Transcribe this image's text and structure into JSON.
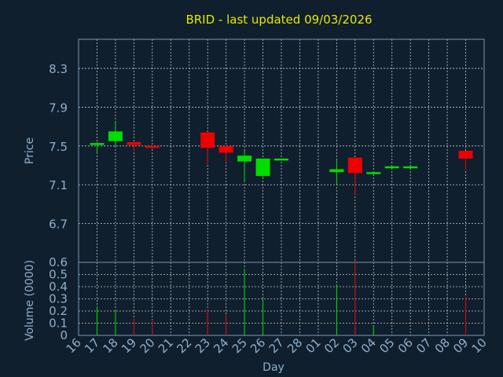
{
  "title": "BRID - last updated 09/03/2026",
  "colors": {
    "background": "#0f1f2e",
    "title": "#e8e800",
    "axis_text": "#8fb0cc",
    "frame": "#7f97b0",
    "grid": "#c8c8c8",
    "up": "#00dd00",
    "down": "#ee0000"
  },
  "chart_data": [
    {
      "type": "candlestick",
      "title": "BRID - last updated 09/03/2026",
      "ylabel": "Price",
      "ylim": [
        6.3,
        8.6
      ],
      "yticks": [
        8.3,
        7.9,
        7.5,
        7.1,
        6.7
      ],
      "ytick_labels": [
        "8.3",
        "7.9",
        "7.5",
        "7.1",
        "6.7"
      ],
      "grid": true,
      "x_categories": [
        "16",
        "17",
        "18",
        "19",
        "20",
        "21",
        "22",
        "23",
        "24",
        "25",
        "26",
        "27",
        "28",
        "01",
        "02",
        "03",
        "04",
        "05",
        "06",
        "07",
        "08",
        "09",
        "10"
      ],
      "candles": [
        {
          "x": "17",
          "open": 7.51,
          "close": 7.53,
          "high": 7.54,
          "low": 7.43
        },
        {
          "x": "18",
          "open": 7.55,
          "close": 7.65,
          "high": 7.75,
          "low": 7.5
        },
        {
          "x": "19",
          "open": 7.54,
          "close": 7.51,
          "high": 7.54,
          "low": 7.44
        },
        {
          "x": "20",
          "open": 7.5,
          "close": 7.48,
          "high": 7.5,
          "low": 7.47
        },
        {
          "x": "23",
          "open": 7.64,
          "close": 7.48,
          "high": 7.64,
          "low": 7.31
        },
        {
          "x": "24",
          "open": 7.5,
          "close": 7.43,
          "high": 7.5,
          "low": 7.33
        },
        {
          "x": "25",
          "open": 7.34,
          "close": 7.4,
          "high": 7.45,
          "low": 7.13
        },
        {
          "x": "26",
          "open": 7.19,
          "close": 7.37,
          "high": 7.37,
          "low": 7.17
        },
        {
          "x": "27",
          "open": 7.36,
          "close": 7.37,
          "high": 7.37,
          "low": 7.36
        },
        {
          "x": "02",
          "open": 7.23,
          "close": 7.26,
          "high": 7.36,
          "low": 7.1
        },
        {
          "x": "03",
          "open": 7.38,
          "close": 7.22,
          "high": 7.38,
          "low": 7.0
        },
        {
          "x": "04",
          "open": 7.22,
          "close": 7.23,
          "high": 7.23,
          "low": 7.21
        },
        {
          "x": "05",
          "open": 7.28,
          "close": 7.29,
          "high": 7.29,
          "low": 7.28
        },
        {
          "x": "06",
          "open": 7.28,
          "close": 7.29,
          "high": 7.29,
          "low": 7.28
        },
        {
          "x": "09",
          "open": 7.45,
          "close": 7.37,
          "high": 7.45,
          "low": 7.25
        }
      ]
    },
    {
      "type": "bar",
      "ylabel": "Volume (0000)",
      "xlabel": "Day",
      "ylim": [
        0,
        0.6
      ],
      "yticks": [
        0,
        0.1,
        0.2,
        0.3,
        0.4,
        0.5,
        0.6
      ],
      "ytick_labels": [
        "0",
        "0.1",
        "0.2",
        "0.3",
        "0.4",
        "0.5",
        "0.6"
      ],
      "grid": true,
      "categories": [
        "16",
        "17",
        "18",
        "19",
        "20",
        "21",
        "22",
        "23",
        "24",
        "25",
        "26",
        "27",
        "28",
        "01",
        "02",
        "03",
        "04",
        "05",
        "06",
        "07",
        "08",
        "09",
        "10"
      ],
      "bars": [
        {
          "x": "17",
          "value": 0.24,
          "color": "up"
        },
        {
          "x": "18",
          "value": 0.21,
          "color": "up"
        },
        {
          "x": "19",
          "value": 0.14,
          "color": "down"
        },
        {
          "x": "20",
          "value": 0.13,
          "color": "down"
        },
        {
          "x": "23",
          "value": 0.21,
          "color": "down"
        },
        {
          "x": "24",
          "value": 0.17,
          "color": "down"
        },
        {
          "x": "25",
          "value": 0.55,
          "color": "up"
        },
        {
          "x": "26",
          "value": 0.3,
          "color": "up"
        },
        {
          "x": "02",
          "value": 0.42,
          "color": "up"
        },
        {
          "x": "03",
          "value": 0.6,
          "color": "down"
        },
        {
          "x": "04",
          "value": 0.08,
          "color": "up"
        },
        {
          "x": "09",
          "value": 0.32,
          "color": "down"
        }
      ]
    }
  ]
}
